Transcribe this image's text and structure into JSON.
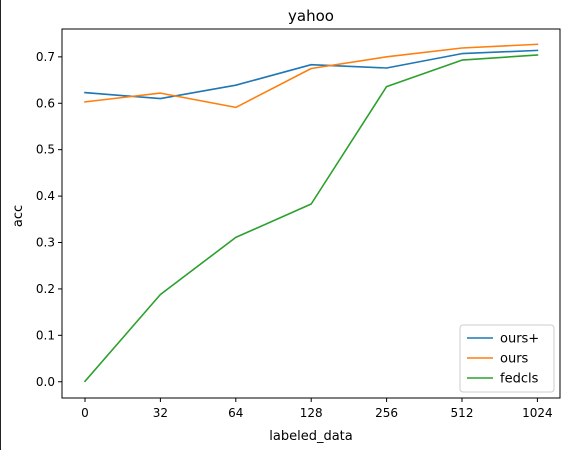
{
  "chart_data": {
    "type": "line",
    "title": "yahoo",
    "xlabel": "labeled_data",
    "ylabel": "acc",
    "categories": [
      "0",
      "32",
      "64",
      "128",
      "256",
      "512",
      "1024"
    ],
    "ylim": [
      -0.035,
      0.76
    ],
    "yticks": [
      "0.0",
      "0.1",
      "0.2",
      "0.3",
      "0.4",
      "0.5",
      "0.6",
      "0.7"
    ],
    "grid": false,
    "legend_position": "lower-right",
    "series": [
      {
        "name": "ours+",
        "color": "#1f77b4",
        "values": [
          0.623,
          0.61,
          0.639,
          0.683,
          0.676,
          0.707,
          0.714
        ]
      },
      {
        "name": "ours",
        "color": "#ff7f0e",
        "values": [
          0.603,
          0.622,
          0.591,
          0.675,
          0.7,
          0.719,
          0.727
        ]
      },
      {
        "name": "fedcls",
        "color": "#2ca02c",
        "values": [
          0.001,
          0.188,
          0.311,
          0.383,
          0.636,
          0.693,
          0.704
        ]
      }
    ]
  }
}
